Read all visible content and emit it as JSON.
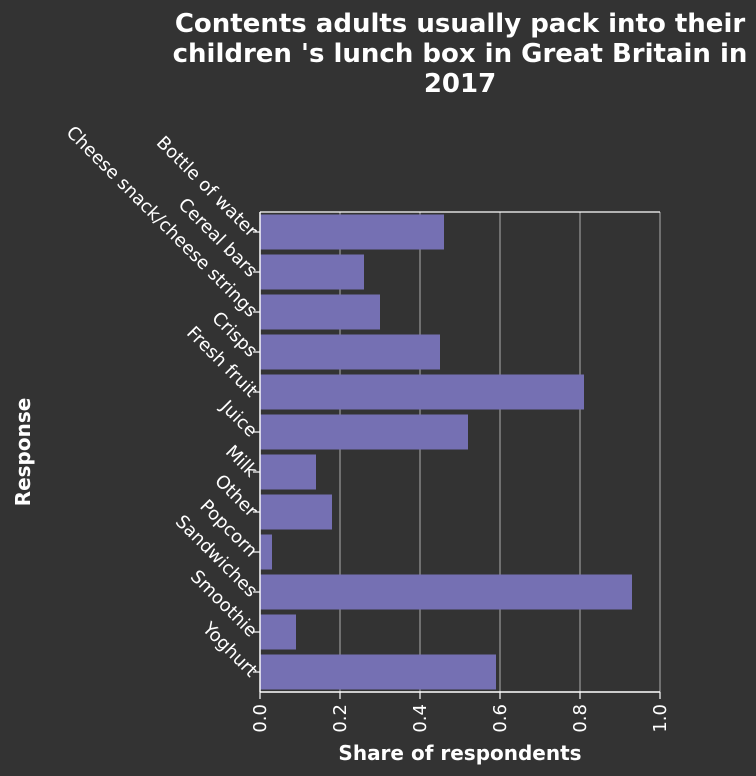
{
  "chart_data": {
    "type": "bar",
    "orientation": "horizontal",
    "title": "Contents adults usually pack into their children 's lunch box in Great Britain in 2017",
    "title_lines": [
      "Contents adults usually pack into their",
      "children 's lunch box in Great Britain in",
      "2017"
    ],
    "xlabel": "Share of respondents",
    "ylabel": "Response",
    "xlim": [
      0,
      1.0
    ],
    "x_ticks": [
      "0.0",
      "0.2",
      "0.4",
      "0.6",
      "0.8",
      "1.0"
    ],
    "grid": true,
    "categories": [
      "Bottle of water",
      "Cereal bars",
      "Cheese snack/cheese strings",
      "Crisps",
      "Fresh fruit",
      "Juice",
      "Milk",
      "Other",
      "Popcorn",
      "Sandwiches",
      "Smoothie",
      "Yoghurt"
    ],
    "values": [
      0.46,
      0.26,
      0.3,
      0.45,
      0.81,
      0.52,
      0.14,
      0.18,
      0.03,
      0.93,
      0.09,
      0.59
    ],
    "bar_color": "#7570b3",
    "background_color": "#333333",
    "grid_color": "#9a9a9a"
  }
}
